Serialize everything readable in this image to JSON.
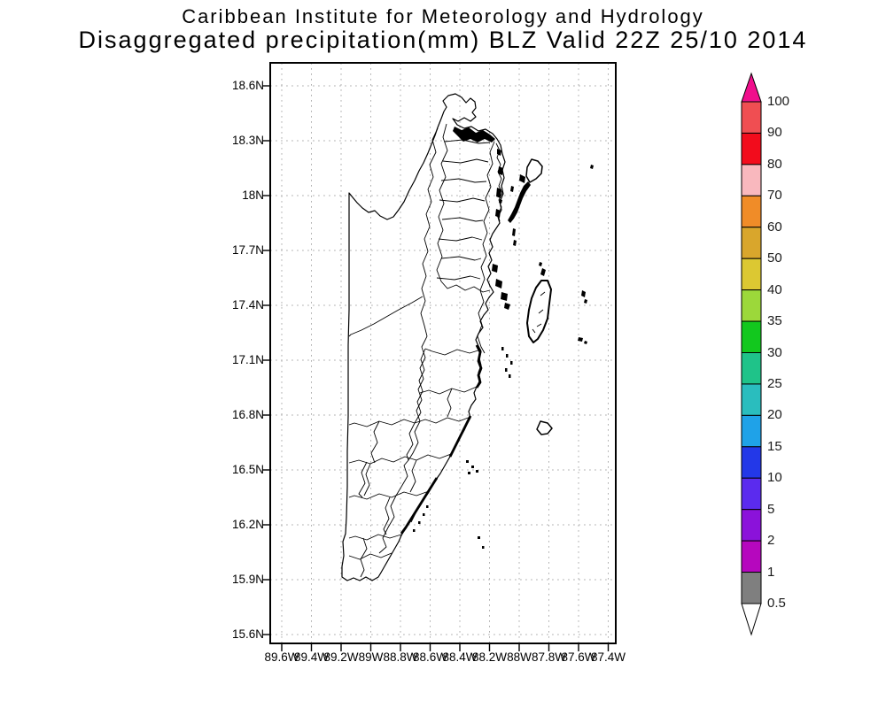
{
  "title": {
    "line1": "Caribbean Institute for Meteorology and Hydrology",
    "line2": "Disaggregated precipitation(mm) BLZ Valid 22Z 25/10 2014"
  },
  "axes": {
    "y_labels": [
      "18.6N",
      "18.3N",
      "18N",
      "17.7N",
      "17.4N",
      "17.1N",
      "16.8N",
      "16.5N",
      "16.2N",
      "15.9N",
      "15.6N"
    ],
    "x_labels": [
      "89.6W",
      "89.4W",
      "89.2W",
      "89W",
      "88.8W",
      "88.6W",
      "88.4W",
      "88.2W",
      "88W",
      "87.8W",
      "87.6W",
      "87.4W"
    ]
  },
  "colorbar": {
    "tick_labels": [
      "100",
      "90",
      "80",
      "70",
      "60",
      "50",
      "40",
      "35",
      "30",
      "25",
      "20",
      "15",
      "10",
      "5",
      "2",
      "1",
      "0.5"
    ],
    "segment_colors_top_to_bottom": [
      "#F04E52",
      "#F20C1C",
      "#F9B8BE",
      "#F08C28",
      "#D9A62C",
      "#DCC832",
      "#9CD83A",
      "#12C81E",
      "#1FC389",
      "#2ABDBE",
      "#1FA2E8",
      "#2338E8",
      "#5B2BEE",
      "#8B12DA",
      "#B607BE",
      "#7F7F7F"
    ],
    "top_arrow_color": "#F00F8C",
    "bottom_arrow_color": "#FFFFFF"
  }
}
